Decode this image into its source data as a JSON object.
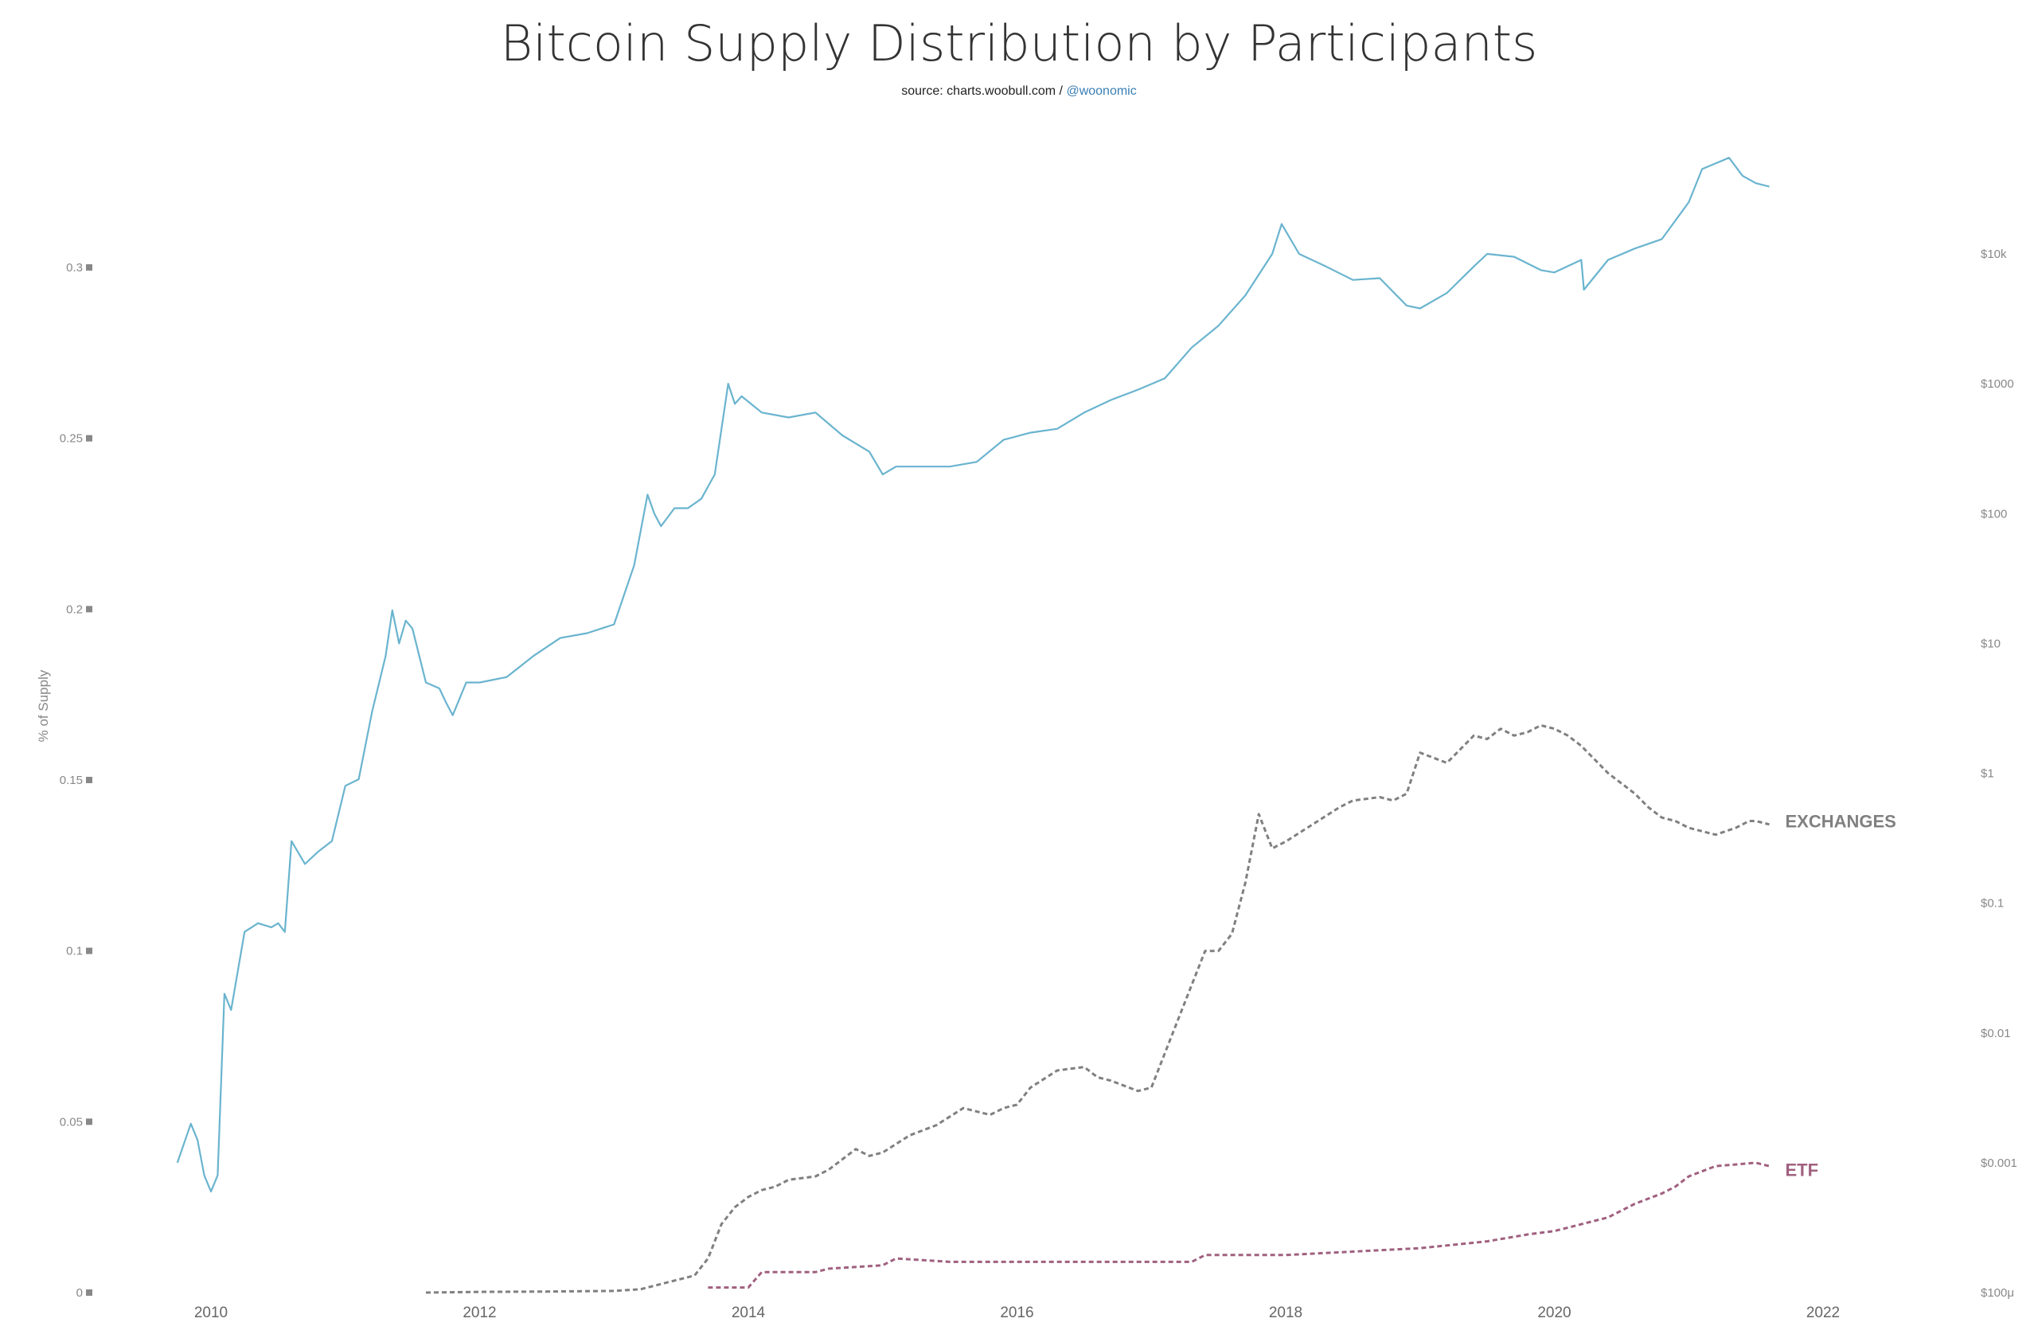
{
  "title": "Bitcoin Supply Distribution by Participants",
  "source": {
    "prefix": "source: charts.woobull.com / ",
    "handle": "@woonomic"
  },
  "chart_data": {
    "type": "line",
    "title": "Bitcoin Supply Distribution by Participants",
    "ylabel": "% of Supply",
    "ylim": [
      0,
      0.3
    ],
    "ylim_right": [
      0.0001,
      100000
    ],
    "right_axis_scale": "log",
    "xlim": [
      2009.6,
      2022.4
    ],
    "x_ticks": [
      "2010",
      "2012",
      "2014",
      "2016",
      "2018",
      "2020",
      "2022"
    ],
    "y_ticks": [
      "0",
      "0.05",
      "0.1",
      "0.15",
      "0.2",
      "0.25",
      "0.3"
    ],
    "y_right_ticks": [
      "$100μ",
      "$0.001",
      "$0.01",
      "$0.1",
      "$1",
      "$10",
      "$100",
      "$1000",
      "$10k"
    ],
    "grid": false,
    "legend": "none",
    "colors": {
      "price": "#6ab4cf",
      "exchanges": "#808080",
      "etf": "#a0607f"
    },
    "series": [
      {
        "key": "price",
        "axis": "right",
        "style": "solid",
        "x": [
          2009.75,
          2009.85,
          2009.9,
          2009.95,
          2010.0,
          2010.05,
          2010.1,
          2010.15,
          2010.25,
          2010.35,
          2010.45,
          2010.5,
          2010.55,
          2010.6,
          2010.7,
          2010.8,
          2010.9,
          2011.0,
          2011.1,
          2011.2,
          2011.3,
          2011.35,
          2011.4,
          2011.45,
          2011.5,
          2011.6,
          2011.7,
          2011.75,
          2011.8,
          2011.9,
          2012.0,
          2012.2,
          2012.4,
          2012.6,
          2012.8,
          2013.0,
          2013.15,
          2013.25,
          2013.3,
          2013.35,
          2013.45,
          2013.55,
          2013.65,
          2013.75,
          2013.85,
          2013.9,
          2013.95,
          2014.1,
          2014.3,
          2014.5,
          2014.7,
          2014.9,
          2015.0,
          2015.1,
          2015.3,
          2015.5,
          2015.7,
          2015.9,
          2016.1,
          2016.3,
          2016.5,
          2016.7,
          2016.9,
          2017.1,
          2017.3,
          2017.5,
          2017.7,
          2017.9,
          2017.97,
          2018.1,
          2018.3,
          2018.5,
          2018.7,
          2018.9,
          2019.0,
          2019.2,
          2019.4,
          2019.5,
          2019.7,
          2019.9,
          2020.0,
          2020.2,
          2020.22,
          2020.4,
          2020.6,
          2020.8,
          2021.0,
          2021.1,
          2021.3,
          2021.4,
          2021.5,
          2021.6
        ],
        "y": [
          0.001,
          0.002,
          0.0015,
          0.0008,
          0.0006,
          0.0008,
          0.02,
          0.015,
          0.06,
          0.07,
          0.065,
          0.07,
          0.06,
          0.3,
          0.2,
          0.25,
          0.3,
          0.8,
          0.9,
          3,
          8,
          18,
          10,
          15,
          13,
          5,
          4.5,
          3.5,
          2.8,
          5,
          5,
          5.5,
          8,
          11,
          12,
          14,
          40,
          140,
          100,
          80,
          110,
          110,
          130,
          200,
          1000,
          700,
          800,
          600,
          550,
          600,
          400,
          300,
          200,
          230,
          230,
          230,
          250,
          370,
          420,
          450,
          600,
          750,
          900,
          1100,
          1900,
          2800,
          4800,
          10000,
          17000,
          10000,
          8000,
          6300,
          6500,
          4000,
          3800,
          5000,
          8000,
          10000,
          9500,
          7500,
          7200,
          9000,
          5300,
          9000,
          11000,
          13000,
          25000,
          45000,
          55000,
          40000,
          35000,
          33000
        ]
      },
      {
        "key": "exchanges",
        "label": "EXCHANGES",
        "axis": "left",
        "style": "dashed",
        "x": [
          2011.6,
          2012.0,
          2012.5,
          2013.0,
          2013.2,
          2013.4,
          2013.6,
          2013.7,
          2013.8,
          2013.9,
          2014.0,
          2014.1,
          2014.2,
          2014.3,
          2014.5,
          2014.6,
          2014.8,
          2014.9,
          2015.0,
          2015.2,
          2015.4,
          2015.6,
          2015.8,
          2015.9,
          2016.0,
          2016.1,
          2016.3,
          2016.5,
          2016.6,
          2016.7,
          2016.9,
          2017.0,
          2017.1,
          2017.2,
          2017.3,
          2017.4,
          2017.5,
          2017.6,
          2017.7,
          2017.8,
          2017.9,
          2018.0,
          2018.2,
          2018.4,
          2018.5,
          2018.7,
          2018.8,
          2018.9,
          2019.0,
          2019.2,
          2019.4,
          2019.5,
          2019.6,
          2019.7,
          2019.8,
          2019.9,
          2020.0,
          2020.1,
          2020.2,
          2020.3,
          2020.4,
          2020.6,
          2020.7,
          2020.8,
          2020.9,
          2021.0,
          2021.2,
          2021.35,
          2021.45,
          2021.5,
          2021.6
        ],
        "y": [
          0,
          0.0002,
          0.0003,
          0.0005,
          0.001,
          0.003,
          0.005,
          0.01,
          0.02,
          0.025,
          0.028,
          0.03,
          0.031,
          0.033,
          0.034,
          0.036,
          0.042,
          0.04,
          0.041,
          0.046,
          0.049,
          0.054,
          0.052,
          0.054,
          0.055,
          0.06,
          0.065,
          0.066,
          0.063,
          0.062,
          0.059,
          0.06,
          0.07,
          0.08,
          0.09,
          0.1,
          0.1,
          0.105,
          0.12,
          0.14,
          0.13,
          0.132,
          0.137,
          0.142,
          0.144,
          0.145,
          0.144,
          0.146,
          0.158,
          0.155,
          0.163,
          0.162,
          0.165,
          0.163,
          0.164,
          0.166,
          0.165,
          0.163,
          0.16,
          0.156,
          0.152,
          0.146,
          0.142,
          0.139,
          0.138,
          0.136,
          0.134,
          0.136,
          0.138,
          0.138,
          0.137
        ],
        "end_label_y": 0.138
      },
      {
        "key": "etf",
        "label": "ETF",
        "axis": "left",
        "style": "dashed",
        "x": [
          2013.7,
          2014.0,
          2014.1,
          2014.5,
          2014.6,
          2015.0,
          2015.1,
          2015.5,
          2016.0,
          2016.5,
          2017.0,
          2017.3,
          2017.4,
          2018.0,
          2018.5,
          2019.0,
          2019.5,
          2019.8,
          2020.0,
          2020.2,
          2020.4,
          2020.6,
          2020.8,
          2020.9,
          2021.0,
          2021.2,
          2021.5,
          2021.6
        ],
        "y": [
          0.0015,
          0.0015,
          0.006,
          0.006,
          0.007,
          0.008,
          0.01,
          0.009,
          0.009,
          0.009,
          0.009,
          0.009,
          0.011,
          0.011,
          0.012,
          0.013,
          0.015,
          0.017,
          0.018,
          0.02,
          0.022,
          0.026,
          0.029,
          0.031,
          0.034,
          0.037,
          0.038,
          0.037
        ],
        "end_label_y": 0.036
      }
    ]
  }
}
